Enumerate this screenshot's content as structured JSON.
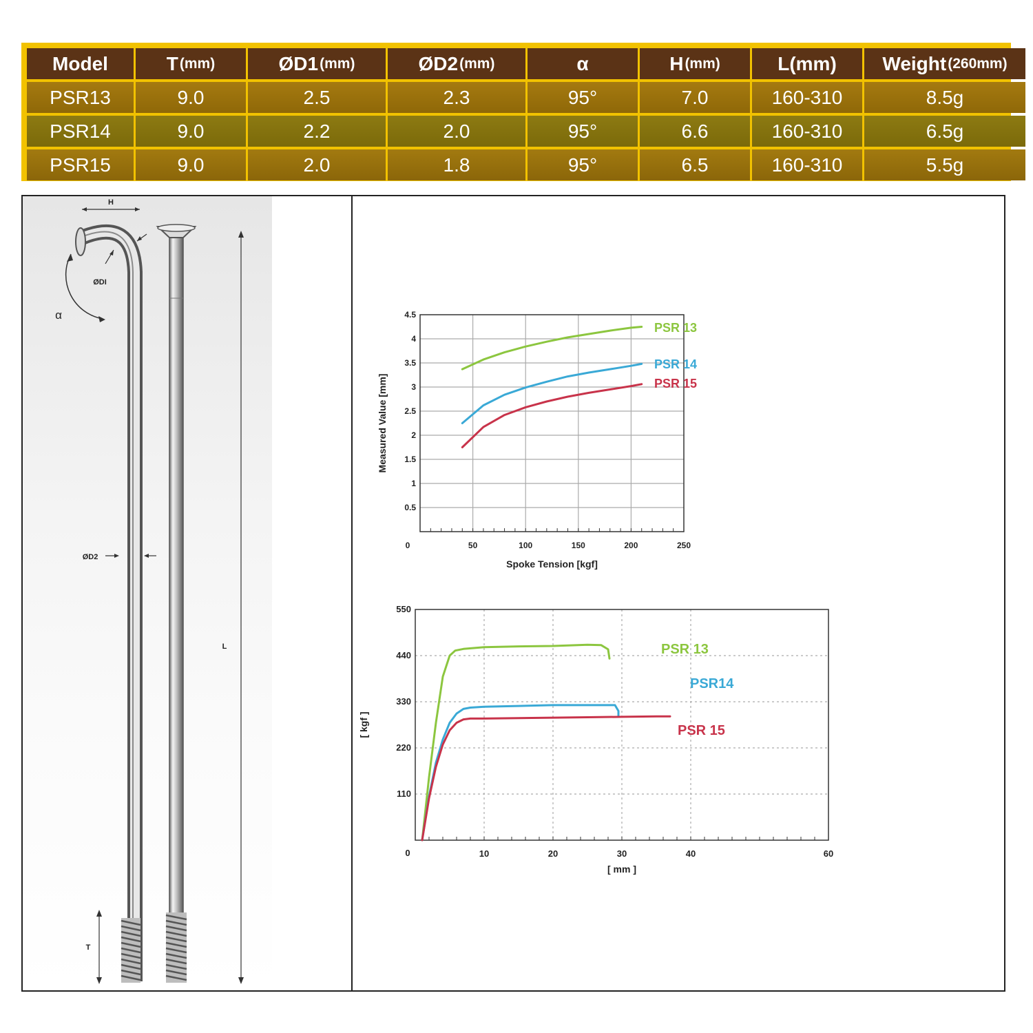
{
  "table": {
    "headers": [
      {
        "main": "Model",
        "unit": ""
      },
      {
        "main": "T",
        "unit": "(mm)"
      },
      {
        "main": "ØD1",
        "unit": "(mm)"
      },
      {
        "main": "ØD2",
        "unit": "(mm)"
      },
      {
        "main": "α",
        "unit": ""
      },
      {
        "main": "H",
        "unit": "(mm)"
      },
      {
        "main": "L(mm)",
        "unit": ""
      },
      {
        "main": "Weight",
        "unit": "(260mm)"
      }
    ],
    "rows": [
      [
        "PSR13",
        "9.0",
        "2.5",
        "2.3",
        "95°",
        "7.0",
        "160-310",
        "8.5g"
      ],
      [
        "PSR14",
        "9.0",
        "2.2",
        "2.0",
        "95°",
        "6.6",
        "160-310",
        "6.5g"
      ],
      [
        "PSR15",
        "9.0",
        "2.0",
        "1.8",
        "95°",
        "6.5",
        "160-310",
        "5.5g"
      ]
    ]
  },
  "drawing_labels": {
    "h": "H",
    "d1": "ØDI",
    "alpha": "α",
    "d2": "ØD2",
    "l": "L",
    "t": "T"
  },
  "colors": {
    "table_border": "#f2c200",
    "header_bg": "#5b3316",
    "psr13": "#8cc63f",
    "psr14": "#3aa9d6",
    "psr15": "#c8334a"
  },
  "chart_data": [
    {
      "type": "line",
      "xlabel": "Spoke Tension [kgf]",
      "ylabel": "Measured Value [mm]",
      "xlim": [
        0,
        250
      ],
      "ylim": [
        0,
        4.5
      ],
      "xticks": [
        0,
        50,
        100,
        150,
        200,
        250
      ],
      "yticks": [
        0.5,
        1,
        1.5,
        2,
        2.5,
        3,
        3.5,
        4,
        4.5
      ],
      "grid": true,
      "series": [
        {
          "name": "PSR 13",
          "color": "#8cc63f",
          "x": [
            40,
            60,
            80,
            100,
            120,
            140,
            160,
            180,
            200,
            210
          ],
          "y": [
            3.37,
            3.57,
            3.72,
            3.84,
            3.94,
            4.03,
            4.1,
            4.17,
            4.23,
            4.25
          ]
        },
        {
          "name": "PSR 14",
          "color": "#3aa9d6",
          "x": [
            40,
            60,
            80,
            100,
            120,
            140,
            160,
            180,
            200,
            210
          ],
          "y": [
            2.25,
            2.62,
            2.84,
            2.99,
            3.11,
            3.22,
            3.3,
            3.37,
            3.44,
            3.48
          ]
        },
        {
          "name": "PSR 15",
          "color": "#c8334a",
          "x": [
            40,
            60,
            80,
            100,
            120,
            140,
            160,
            180,
            200,
            210
          ],
          "y": [
            1.75,
            2.17,
            2.42,
            2.58,
            2.7,
            2.8,
            2.88,
            2.95,
            3.02,
            3.06
          ]
        }
      ]
    },
    {
      "type": "line",
      "xlabel": "[ mm ]",
      "ylabel": "[ kgf ]",
      "xlim": [
        0,
        60
      ],
      "ylim": [
        0,
        550
      ],
      "xticks": [
        0,
        10,
        20,
        30,
        40,
        60
      ],
      "yticks": [
        110,
        220,
        330,
        440,
        550
      ],
      "grid": true,
      "series": [
        {
          "name": "PSR 13",
          "color": "#8cc63f",
          "x": [
            1,
            2,
            3,
            4,
            5,
            5.8,
            7,
            10,
            15,
            20,
            25,
            27,
            28,
            28.2
          ],
          "y": [
            0,
            150,
            280,
            390,
            440,
            452,
            456,
            460,
            462,
            463,
            466,
            465,
            455,
            433
          ]
        },
        {
          "name": "PSR14",
          "color": "#3aa9d6",
          "x": [
            1,
            2,
            3,
            4,
            5,
            6,
            7,
            8,
            10,
            15,
            20,
            25,
            29,
            29.5,
            29.5
          ],
          "y": [
            0,
            105,
            185,
            240,
            280,
            302,
            313,
            316,
            318,
            320,
            322,
            322,
            322,
            308,
            295
          ]
        },
        {
          "name": "PSR 15",
          "color": "#c8334a",
          "x": [
            1,
            2,
            3,
            4,
            5,
            6,
            7,
            8,
            10,
            15,
            20,
            25,
            30,
            35,
            37
          ],
          "y": [
            0,
            100,
            175,
            228,
            262,
            280,
            288,
            290,
            290,
            291,
            292,
            293,
            294,
            295,
            295
          ]
        }
      ]
    }
  ]
}
